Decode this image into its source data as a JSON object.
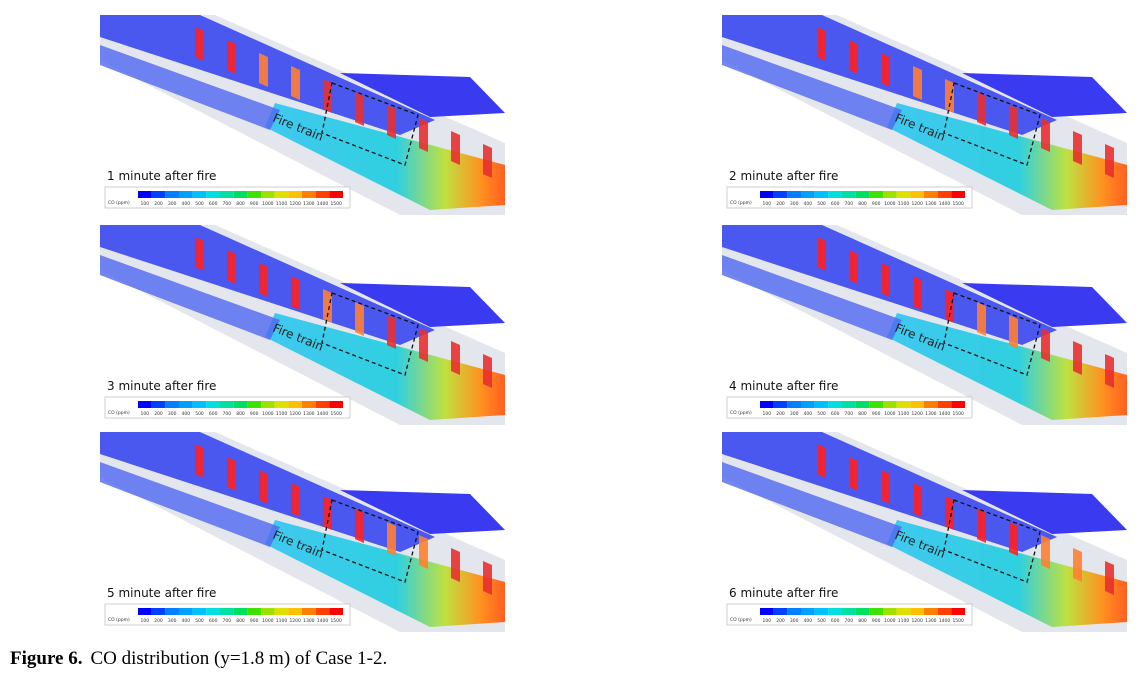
{
  "panels": [
    {
      "label": "1 minute after fire",
      "annotation": "Fire train"
    },
    {
      "label": "2 minute after fire",
      "annotation": "Fire train"
    },
    {
      "label": "3 minute after fire",
      "annotation": "Fire train"
    },
    {
      "label": "4 minute after fire",
      "annotation": "Fire train"
    },
    {
      "label": "5 minute after fire",
      "annotation": "Fire train"
    },
    {
      "label": "6 minute after fire",
      "annotation": "Fire train"
    }
  ],
  "colorbar": {
    "unit": "CO (ppm)",
    "ticks": [
      100,
      200,
      300,
      400,
      500,
      600,
      700,
      800,
      900,
      1000,
      1100,
      1200,
      1300,
      1400,
      1500
    ],
    "colors": [
      "#0000ff",
      "#0040ff",
      "#0080ff",
      "#00a0ff",
      "#00c0ff",
      "#00e0e0",
      "#00e0a0",
      "#00e060",
      "#40e000",
      "#a0e000",
      "#e0e000",
      "#ffc000",
      "#ff8000",
      "#ff4000",
      "#ff0000"
    ]
  },
  "caption": {
    "label": "Figure 6.",
    "text": "CO distribution (y=1.8 m) of Case 1-2."
  }
}
